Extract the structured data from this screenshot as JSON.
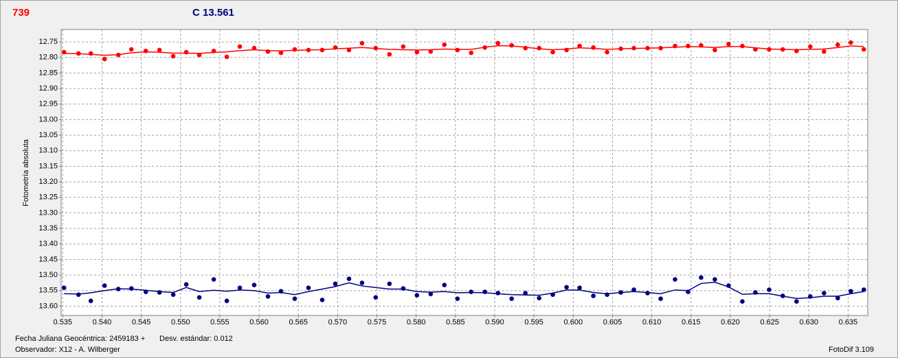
{
  "chart_data": {
    "type": "scatter",
    "y_axis_label": "Fotometría absoluta",
    "footer": {
      "date": "Fecha Juliana Geocéntrica: 2459183 +",
      "stdev": "Desv. estándar: 0.012",
      "observer": "Observador: X12 - A. Wilberger",
      "software": "FotoDif 3.109"
    },
    "xlim": [
      0.5348,
      0.6375
    ],
    "ylim": [
      12.71,
      13.63
    ],
    "y_inverted": true,
    "grid": true,
    "xticks": [
      0.535,
      {
        "value": 0.54,
        "label": "0.540"
      },
      0.545,
      {
        "value": 0.55,
        "label": "0.550"
      },
      0.555,
      {
        "value": 0.56,
        "label": "0.560"
      },
      0.565,
      {
        "value": 0.57,
        "label": "0.570"
      },
      0.575,
      {
        "value": 0.58,
        "label": "0.580"
      },
      0.585,
      {
        "value": 0.59,
        "label": "0.590"
      },
      0.595,
      {
        "value": 0.6,
        "label": "0.600"
      },
      0.605,
      {
        "value": 0.61,
        "label": "0.610"
      },
      0.615,
      {
        "value": 0.62,
        "label": "0.620"
      },
      0.625,
      {
        "value": 0.63,
        "label": "0.630"
      },
      0.635
    ],
    "yticks": [
      12.75,
      {
        "value": 12.8,
        "label": "12.80"
      },
      12.85,
      {
        "value": 12.9,
        "label": "12.90"
      },
      12.95,
      {
        "value": 13,
        "label": "13.00"
      },
      13.05,
      {
        "value": 13.1,
        "label": "13.10"
      },
      13.15,
      {
        "value": 13.2,
        "label": "13.20"
      },
      13.25,
      {
        "value": 13.3,
        "label": "13.30"
      },
      13.35,
      {
        "value": 13.4,
        "label": "13.40"
      },
      13.45,
      {
        "value": 13.5,
        "label": "13.50"
      },
      13.55,
      {
        "value": 13.6,
        "label": "13.60"
      }
    ],
    "x": [
      0.53517,
      0.53701,
      0.53858,
      0.54033,
      0.54208,
      0.54374,
      0.54558,
      0.54732,
      0.54907,
      0.55073,
      0.55239,
      0.55423,
      0.55589,
      0.55755,
      0.55938,
      0.56113,
      0.56279,
      0.56454,
      0.56629,
      0.56804,
      0.5697,
      0.57145,
      0.57311,
      0.57485,
      0.5766,
      0.57835,
      0.5801,
      0.58185,
      0.58359,
      0.58526,
      0.587,
      0.58875,
      0.59041,
      0.59216,
      0.59391,
      0.59566,
      0.5974,
      0.59915,
      0.60081,
      0.60256,
      0.60431,
      0.60606,
      0.60772,
      0.60946,
      0.61113,
      0.61296,
      0.61462,
      0.61628,
      0.61803,
      0.61978,
      0.62153,
      0.62319,
      0.62494,
      0.62668,
      0.62843,
      0.63018,
      0.63193,
      0.63368,
      0.63534,
      0.637
    ],
    "series": [
      {
        "name": "739",
        "color": "#ff0000",
        "values": [
          12.783,
          12.787,
          12.787,
          12.805,
          12.792,
          12.774,
          12.779,
          12.776,
          12.796,
          12.783,
          12.792,
          12.779,
          12.798,
          12.765,
          12.77,
          12.781,
          12.785,
          12.774,
          12.776,
          12.776,
          12.768,
          12.776,
          12.754,
          12.77,
          12.79,
          12.765,
          12.783,
          12.781,
          12.759,
          12.776,
          12.785,
          12.768,
          12.754,
          12.761,
          12.77,
          12.77,
          12.783,
          12.776,
          12.763,
          12.768,
          12.783,
          12.772,
          12.77,
          12.77,
          12.77,
          12.763,
          12.763,
          12.761,
          12.776,
          12.757,
          12.763,
          12.774,
          12.774,
          12.774,
          12.779,
          12.765,
          12.781,
          12.759,
          12.752,
          12.774
        ],
        "fit": [
          12.787,
          12.788,
          12.79,
          12.793,
          12.791,
          12.785,
          12.782,
          12.783,
          12.786,
          12.786,
          12.787,
          12.784,
          12.782,
          12.778,
          12.775,
          12.778,
          12.779,
          12.777,
          12.776,
          12.775,
          12.772,
          12.77,
          12.768,
          12.771,
          12.774,
          12.775,
          12.776,
          12.775,
          12.773,
          12.774,
          12.774,
          12.767,
          12.762,
          12.763,
          12.767,
          12.772,
          12.775,
          12.773,
          12.769,
          12.771,
          12.774,
          12.772,
          12.771,
          12.77,
          12.769,
          12.767,
          12.765,
          12.766,
          12.768,
          12.765,
          12.765,
          12.769,
          12.773,
          12.774,
          12.775,
          12.774,
          12.773,
          12.768,
          12.763,
          12.765
        ]
      },
      {
        "name": "C 13.561",
        "color": "#000080",
        "values": [
          13.541,
          13.563,
          13.583,
          13.534,
          13.545,
          13.543,
          13.554,
          13.556,
          13.563,
          13.53,
          13.572,
          13.514,
          13.583,
          13.541,
          13.532,
          13.569,
          13.552,
          13.576,
          13.541,
          13.58,
          13.528,
          13.512,
          13.525,
          13.572,
          13.528,
          13.543,
          13.565,
          13.561,
          13.532,
          13.576,
          13.554,
          13.554,
          13.558,
          13.576,
          13.558,
          13.574,
          13.563,
          13.539,
          13.541,
          13.567,
          13.563,
          13.556,
          13.547,
          13.558,
          13.576,
          13.514,
          13.554,
          13.508,
          13.514,
          13.534,
          13.585,
          13.556,
          13.547,
          13.567,
          13.585,
          13.569,
          13.558,
          13.574,
          13.552,
          13.547
        ],
        "fit": [
          13.56,
          13.561,
          13.557,
          13.55,
          13.544,
          13.545,
          13.549,
          13.553,
          13.556,
          13.54,
          13.553,
          13.549,
          13.552,
          13.548,
          13.55,
          13.558,
          13.556,
          13.563,
          13.553,
          13.545,
          13.537,
          13.525,
          13.535,
          13.54,
          13.545,
          13.545,
          13.553,
          13.555,
          13.553,
          13.557,
          13.556,
          13.557,
          13.56,
          13.563,
          13.564,
          13.565,
          13.558,
          13.548,
          13.548,
          13.556,
          13.56,
          13.556,
          13.553,
          13.556,
          13.56,
          13.548,
          13.55,
          13.527,
          13.523,
          13.538,
          13.562,
          13.56,
          13.56,
          13.568,
          13.575,
          13.573,
          13.568,
          13.568,
          13.56,
          13.553
        ]
      }
    ]
  }
}
